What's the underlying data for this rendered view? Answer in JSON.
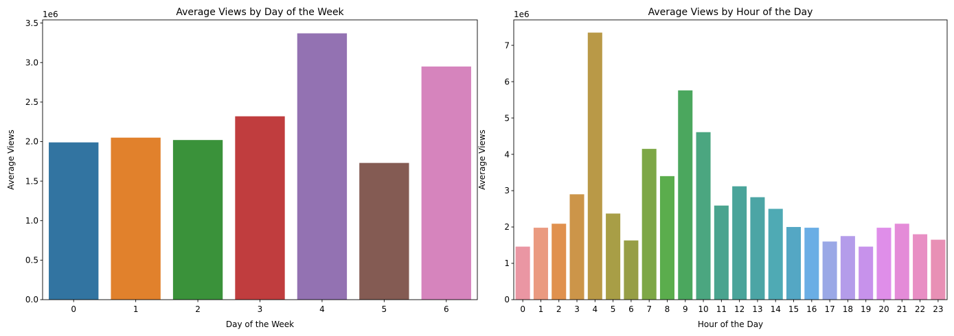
{
  "chart_data": [
    {
      "type": "bar",
      "title": "Average Views by Day of the Week",
      "xlabel": "Day of the Week",
      "ylabel": "Average Views",
      "y_offset_label": "1e6",
      "ylim": [
        0,
        3.54
      ],
      "yticks": [
        0,
        0.5,
        1.0,
        1.5,
        2.0,
        2.5,
        3.0,
        3.5
      ],
      "ytick_labels": [
        "0.0",
        "0.5",
        "1.0",
        "1.5",
        "2.0",
        "2.5",
        "3.0",
        "3.5"
      ],
      "categories": [
        "0",
        "1",
        "2",
        "3",
        "4",
        "5",
        "6"
      ],
      "values": [
        1.99,
        2.05,
        2.02,
        2.32,
        3.37,
        1.73,
        2.95
      ],
      "colors": [
        "#3274a1",
        "#e1812c",
        "#3a923a",
        "#c03d3e",
        "#9372b2",
        "#845b53",
        "#d684bd"
      ],
      "grid": false
    },
    {
      "type": "bar",
      "title": "Average Views by Hour of the Day",
      "xlabel": "Hour of the Day",
      "ylabel": "Average Views",
      "y_offset_label": "1e6",
      "ylim": [
        0,
        7.7
      ],
      "yticks": [
        0,
        1,
        2,
        3,
        4,
        5,
        6,
        7
      ],
      "ytick_labels": [
        "0",
        "1",
        "2",
        "3",
        "4",
        "5",
        "6",
        "7"
      ],
      "categories": [
        "0",
        "1",
        "2",
        "3",
        "4",
        "5",
        "6",
        "7",
        "8",
        "9",
        "10",
        "11",
        "12",
        "13",
        "14",
        "15",
        "16",
        "17",
        "18",
        "19",
        "20",
        "21",
        "22",
        "23"
      ],
      "values": [
        1.46,
        1.98,
        2.09,
        2.9,
        7.35,
        2.37,
        1.63,
        4.15,
        3.4,
        5.76,
        4.61,
        2.59,
        3.12,
        2.82,
        2.5,
        2.0,
        1.98,
        1.6,
        1.75,
        1.46,
        1.98,
        2.09,
        1.8,
        1.65
      ],
      "colors": [
        "#ea96a3",
        "#ea9a80",
        "#e0914e",
        "#cc9549",
        "#b99947",
        "#a89e46",
        "#979e46",
        "#7da746",
        "#5bad4d",
        "#4ba75e",
        "#4ba680",
        "#4aa48f",
        "#4aa49a",
        "#4ca5a5",
        "#4faab4",
        "#54a7c4",
        "#6aaee5",
        "#9aa8e6",
        "#b49cea",
        "#c792eb",
        "#df8ee9",
        "#e48bd8",
        "#e88fc4",
        "#e890b5"
      ],
      "grid": false
    }
  ]
}
